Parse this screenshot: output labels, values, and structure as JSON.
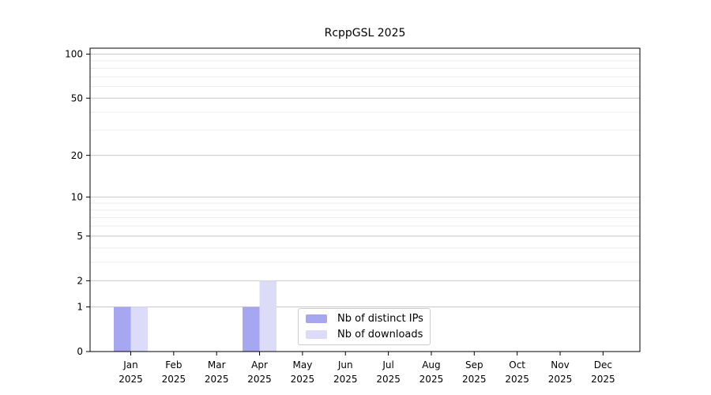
{
  "chart_data": {
    "type": "bar",
    "title": "RcppGSL 2025",
    "categories": [
      "Jan 2025",
      "Feb 2025",
      "Mar 2025",
      "Apr 2025",
      "May 2025",
      "Jun 2025",
      "Jul 2025",
      "Aug 2025",
      "Sep 2025",
      "Oct 2025",
      "Nov 2025",
      "Dec 2025"
    ],
    "series": [
      {
        "name": "Nb of distinct IPs",
        "color": "#a6a6f1",
        "values": [
          1,
          0,
          0,
          1,
          0,
          0,
          0,
          0,
          0,
          0,
          0,
          0
        ]
      },
      {
        "name": "Nb of downloads",
        "color": "#dcdbf8",
        "values": [
          1,
          0,
          0,
          2,
          0,
          0,
          0,
          0,
          0,
          0,
          0,
          0
        ]
      }
    ],
    "xlabel": "",
    "ylabel": "",
    "yscale": "log1p",
    "ylim": [
      0,
      110
    ],
    "yticks": [
      0,
      1,
      2,
      5,
      10,
      20,
      50,
      100
    ],
    "minor_yticks": [
      3,
      4,
      6,
      7,
      8,
      9,
      30,
      40,
      60,
      70,
      80,
      90
    ],
    "grid": "horizontal",
    "legend_position": "inside-bottom-center",
    "colors": {
      "major_grid": "#c8c8c8",
      "minor_grid": "#ededed",
      "axis": "#000000",
      "background": "#ffffff"
    }
  }
}
